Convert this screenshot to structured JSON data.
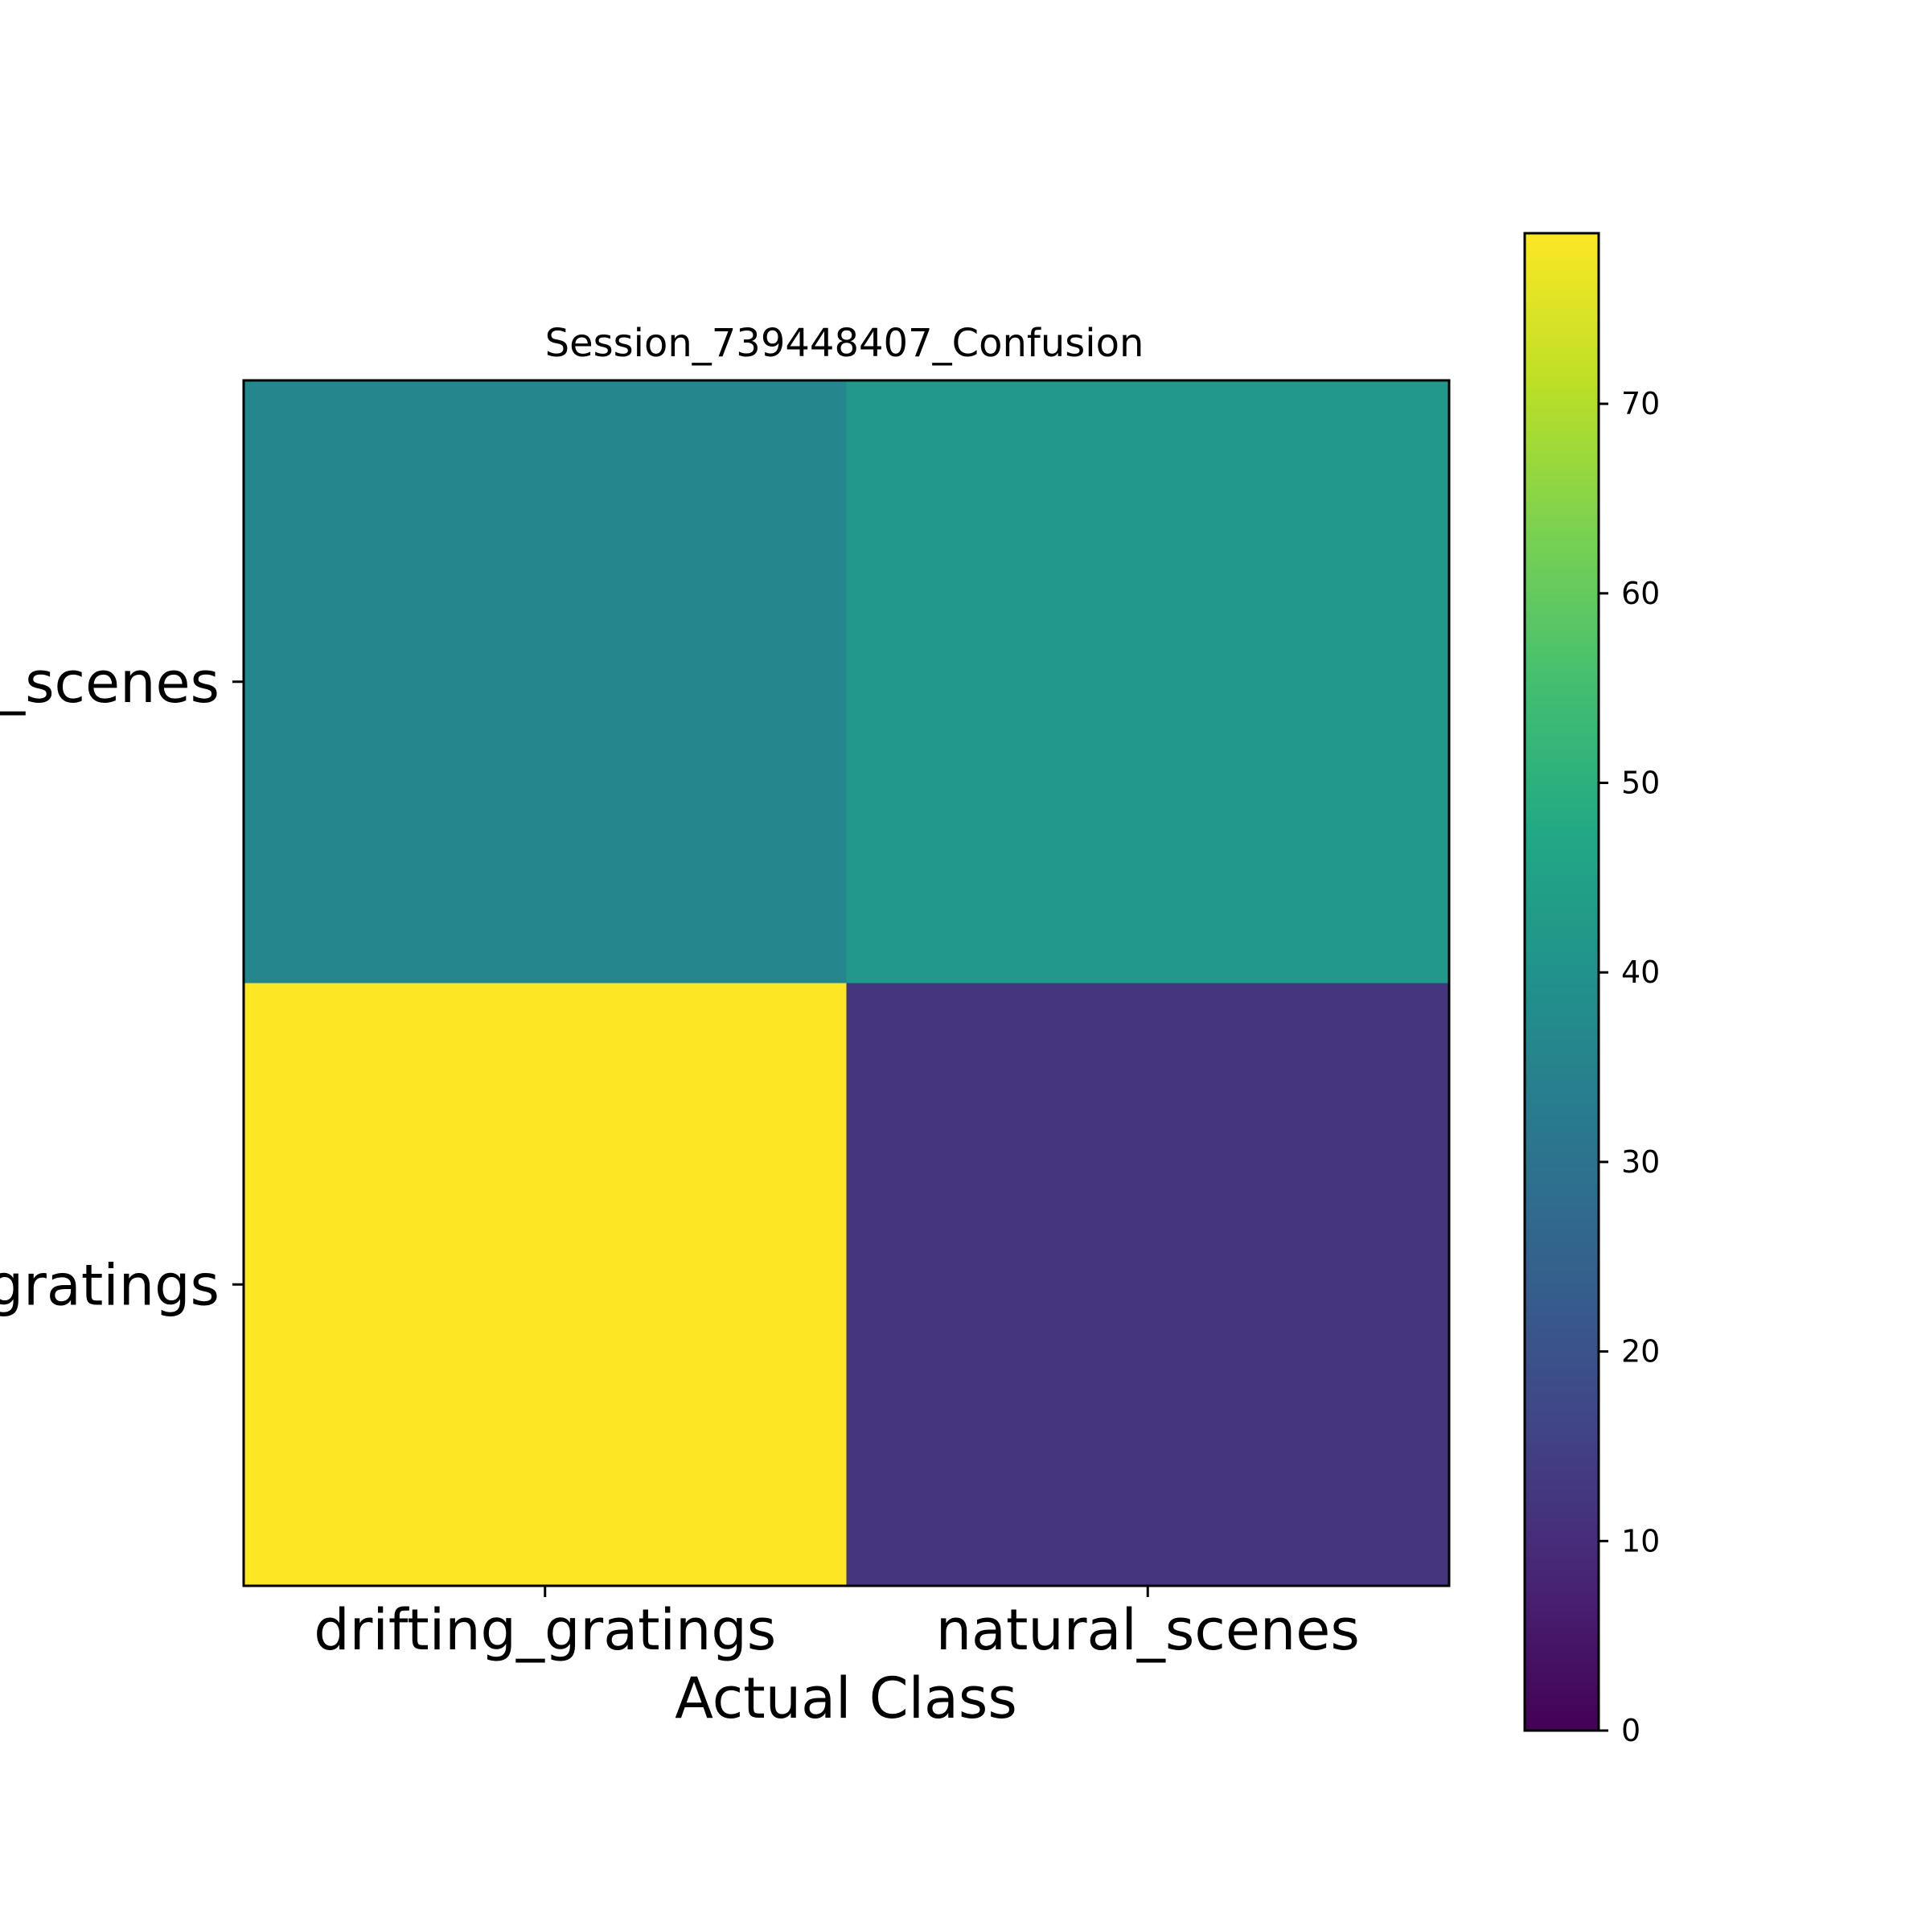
{
  "chart_data": {
    "type": "heatmap",
    "title": "Session_739448407_Confusion",
    "xlabel": "Actual Class",
    "ylabel": "",
    "x_categories": [
      "drifting_gratings",
      "natural_scenes"
    ],
    "y_categories": [
      "natural_scenes",
      "drifting_gratings"
    ],
    "y_tick_labels_visible": [
      "l_scenes",
      "gratings"
    ],
    "values": [
      [
        36,
        42
      ],
      [
        79,
        12
      ]
    ],
    "colormap": "viridis",
    "colorbar": {
      "range": [
        0,
        79
      ],
      "ticks": [
        "0",
        "10",
        "20",
        "30",
        "40",
        "50",
        "60",
        "70"
      ]
    },
    "grid": false
  }
}
